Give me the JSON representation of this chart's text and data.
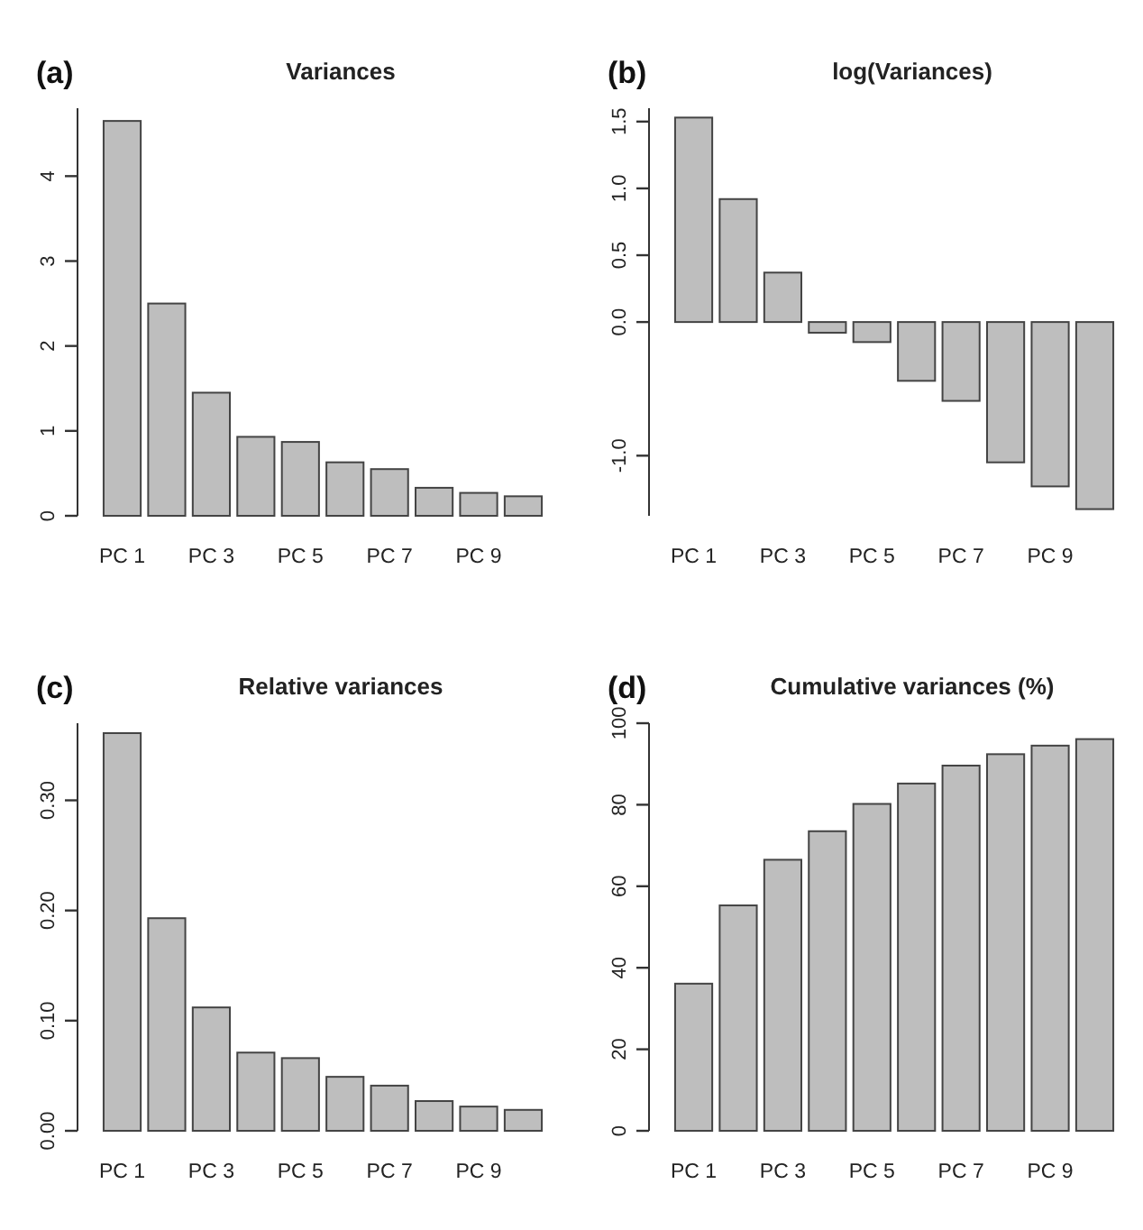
{
  "chart_data": [
    {
      "type": "bar",
      "title": "Variances",
      "annotations": [
        "(a)"
      ],
      "categories": [
        "PC 1",
        null,
        "PC 3",
        null,
        "PC 5",
        null,
        "PC 7",
        null,
        "PC 9",
        null
      ],
      "values": [
        4.65,
        2.5,
        1.45,
        0.93,
        0.87,
        0.63,
        0.55,
        0.33,
        0.27,
        0.23
      ],
      "color": "#bebebe",
      "ylim": [
        0,
        4.8
      ],
      "yticks": [
        0,
        1,
        2,
        3,
        4
      ]
    },
    {
      "type": "bar",
      "title": "log(Variances)",
      "annotations": [
        "(b)"
      ],
      "categories": [
        "PC 1",
        null,
        "PC 3",
        null,
        "PC 5",
        null,
        "PC 7",
        null,
        "PC 9",
        null
      ],
      "values": [
        1.53,
        0.92,
        0.37,
        -0.08,
        -0.15,
        -0.44,
        -0.59,
        -1.05,
        -1.23,
        -1.4
      ],
      "color": "#bebebe",
      "ylim": [
        -1.45,
        1.6
      ],
      "yticks": [
        {
          "value": -1,
          "label": "-1.0"
        },
        {
          "value": 0,
          "label": "0.0"
        },
        0.5,
        {
          "value": 1,
          "label": "1.0"
        },
        1.5
      ]
    },
    {
      "type": "bar",
      "title": "Relative variances",
      "annotations": [
        "(c)"
      ],
      "categories": [
        "PC 1",
        null,
        "PC 3",
        null,
        "PC 5",
        null,
        "PC 7",
        null,
        "PC 9",
        null
      ],
      "values": [
        0.361,
        0.193,
        0.112,
        0.071,
        0.066,
        0.049,
        0.041,
        0.027,
        0.022,
        0.019
      ],
      "color": "#bebebe",
      "ylim": [
        0,
        0.37
      ],
      "yticks": [
        {
          "value": 0,
          "label": "0.00"
        },
        {
          "value": 0.1,
          "label": "0.10"
        },
        {
          "value": 0.2,
          "label": "0.20"
        },
        {
          "value": 0.3,
          "label": "0.30"
        }
      ]
    },
    {
      "type": "bar",
      "title": "Cumulative variances (%)",
      "annotations": [
        "(d)"
      ],
      "categories": [
        "PC 1",
        null,
        "PC 3",
        null,
        "PC 5",
        null,
        "PC 7",
        null,
        "PC 9",
        null
      ],
      "values": [
        36.1,
        55.3,
        66.5,
        73.5,
        80.2,
        85.2,
        89.6,
        92.4,
        94.5,
        96.1
      ],
      "color": "#bebebe",
      "ylim": [
        0,
        100
      ],
      "yticks": [
        0,
        20,
        40,
        60,
        80,
        100
      ]
    }
  ]
}
